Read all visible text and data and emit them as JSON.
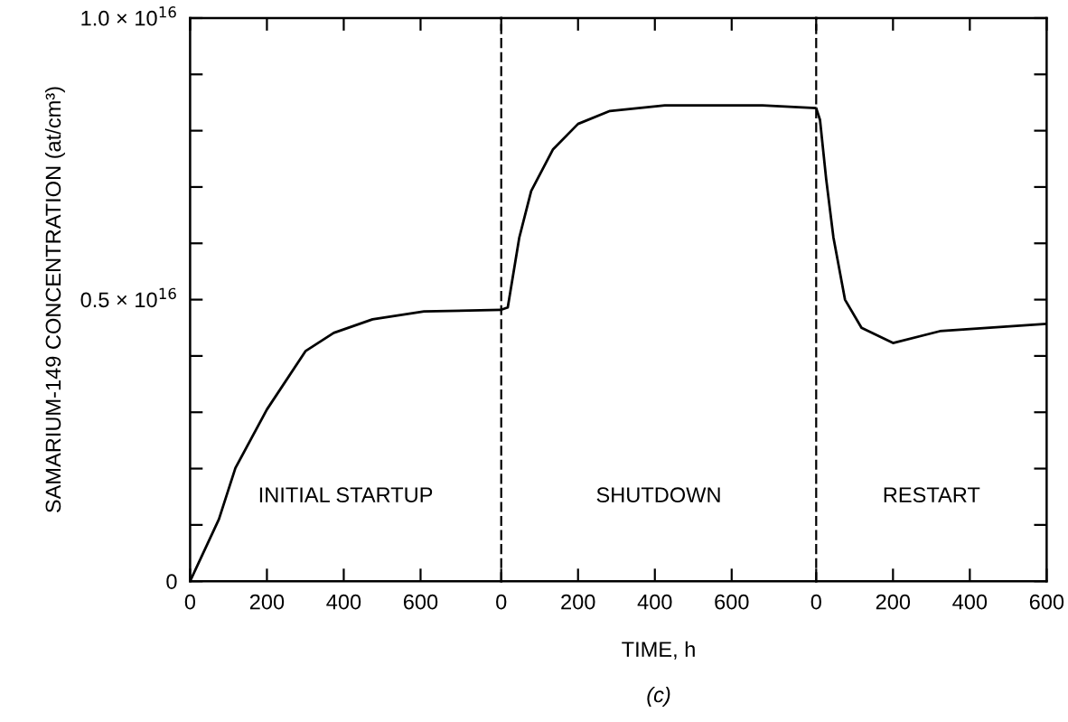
{
  "chart_data": [
    {
      "type": "line",
      "ylabel": "SAMARIUM-149 CONCENTRATION (at/cm³)",
      "annotations": [
        "INITIAL STARTUP"
      ],
      "series": [
        {
          "color": "#000000",
          "x": [
            0,
            75,
            118,
            200,
            301,
            374,
            475,
            609,
            810
          ],
          "values": [
            0,
            1100000000000000.0,
            2010000000000000.0,
            3050000000000000.0,
            4090000000000000.0,
            4410000000000000.0,
            4650000000000000.0,
            4790000000000000.0,
            4820000000000000.0
          ]
        }
      ],
      "xlim": [
        0,
        810
      ],
      "xticks": [
        0,
        200,
        400,
        600
      ],
      "ylim": [
        0,
        1e+16
      ],
      "yticks": [
        0,
        {
          "value": 1000000000000000.0,
          "label": null
        },
        {
          "value": 2000000000000000.0,
          "label": null
        },
        {
          "value": 3000000000000000.0,
          "label": null
        },
        {
          "value": 4000000000000000.0,
          "label": null
        },
        {
          "value": 5000000000000000.0,
          "label": "0.5 × 10$^{16}$"
        },
        {
          "value": 6000000000000000.0,
          "label": null
        },
        {
          "value": 7000000000000000.0,
          "label": null
        },
        {
          "value": 8000000000000000.0,
          "label": null
        },
        {
          "value": 9000000000000000.0,
          "label": null
        },
        {
          "value": 1e+16,
          "label": "1.0 × 10$^{16}$"
        }
      ],
      "grid": false,
      "legend": false,
      "marker": "none",
      "line_style": "solid"
    },
    {
      "type": "line",
      "xlabel": "TIME, h",
      "annotations": [
        "SHUTDOWN",
        "(c)"
      ],
      "series": [
        {
          "color": "#000000",
          "x": [
            0,
            17,
            47,
            78,
            135,
            200,
            283,
            426,
            680,
            820
          ],
          "values": [
            4820000000000000.0,
            4860000000000000.0,
            6100000000000000.0,
            6930000000000000.0,
            7670000000000000.0,
            8120000000000000.0,
            8350000000000000.0,
            8450000000000000.0,
            8450000000000000.0,
            8400000000000000.0
          ]
        }
      ],
      "xlim": [
        0,
        820
      ],
      "xticks": [
        0,
        200,
        400,
        600
      ],
      "ylim": [
        0,
        1e+16
      ],
      "tick_labels": "x",
      "grid": false,
      "legend": false,
      "marker": "none",
      "line_style": "solid"
    },
    {
      "type": "line",
      "annotations": [
        "RESTART"
      ],
      "series": [
        {
          "color": "#000000",
          "x": [
            0,
            10,
            26,
            45,
            75,
            118,
            200,
            322,
            600
          ],
          "values": [
            8400000000000000.0,
            8190000000000000.0,
            7140000000000000.0,
            6100000000000000.0,
            5000000000000000.0,
            4500000000000000.0,
            4230000000000000.0,
            4440000000000000.0,
            4570000000000000.0
          ]
        }
      ],
      "xlim": [
        0,
        600
      ],
      "xticks": [
        0,
        200,
        400,
        600
      ],
      "ylim": [
        0,
        1e+16
      ],
      "tick_labels": "x",
      "yticks": [
        0,
        1000000000000000.0,
        2000000000000000.0,
        3000000000000000.0,
        4000000000000000.0,
        5000000000000000.0,
        6000000000000000.0,
        7000000000000000.0,
        8000000000000000.0,
        9000000000000000.0,
        1e+16
      ],
      "grid": false,
      "legend": false,
      "marker": "none",
      "line_style": "solid"
    }
  ]
}
